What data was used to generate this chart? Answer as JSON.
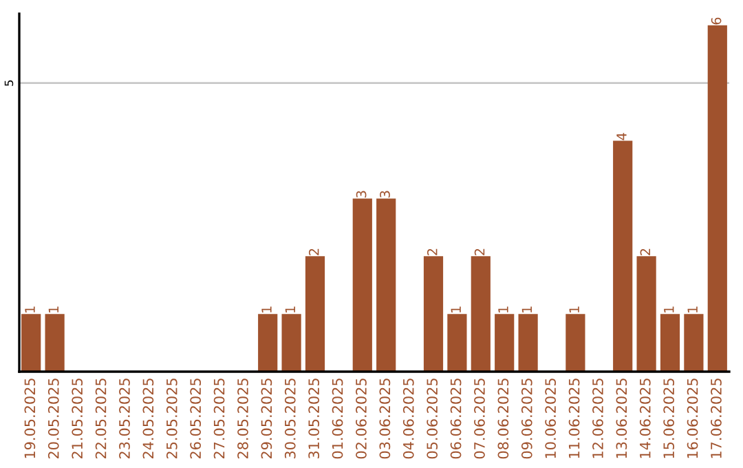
{
  "chart_data": {
    "type": "bar",
    "categories": [
      "19.05.2025",
      "20.05.2025",
      "21.05.2025",
      "22.05.2025",
      "23.05.2025",
      "24.05.2025",
      "25.05.2025",
      "26.05.2025",
      "27.05.2025",
      "28.05.2025",
      "29.05.2025",
      "30.05.2025",
      "31.05.2025",
      "01.06.2025",
      "02.06.2025",
      "03.06.2025",
      "04.06.2025",
      "05.06.2025",
      "06.06.2025",
      "07.06.2025",
      "08.06.2025",
      "09.06.2025",
      "10.06.2025",
      "11.06.2025",
      "12.06.2025",
      "13.06.2025",
      "14.06.2025",
      "15.06.2025",
      "16.06.2025",
      "17.06.2025"
    ],
    "values": [
      1,
      1,
      0,
      0,
      0,
      0,
      0,
      0,
      0,
      0,
      1,
      1,
      2,
      0,
      3,
      3,
      0,
      2,
      1,
      2,
      1,
      1,
      0,
      1,
      0,
      4,
      2,
      1,
      1,
      6
    ],
    "value_labels": [
      "1",
      "1",
      null,
      null,
      null,
      null,
      null,
      null,
      null,
      null,
      "1",
      "1",
      "2",
      null,
      "3",
      "3",
      null,
      "2",
      "1",
      "2",
      "1",
      "1",
      null,
      "1",
      null,
      "4",
      "2",
      "1",
      "1",
      "6"
    ],
    "color": "#a0522d",
    "ylim": [
      0,
      6.2
    ],
    "yticks": [
      5
    ],
    "grid": "y"
  }
}
